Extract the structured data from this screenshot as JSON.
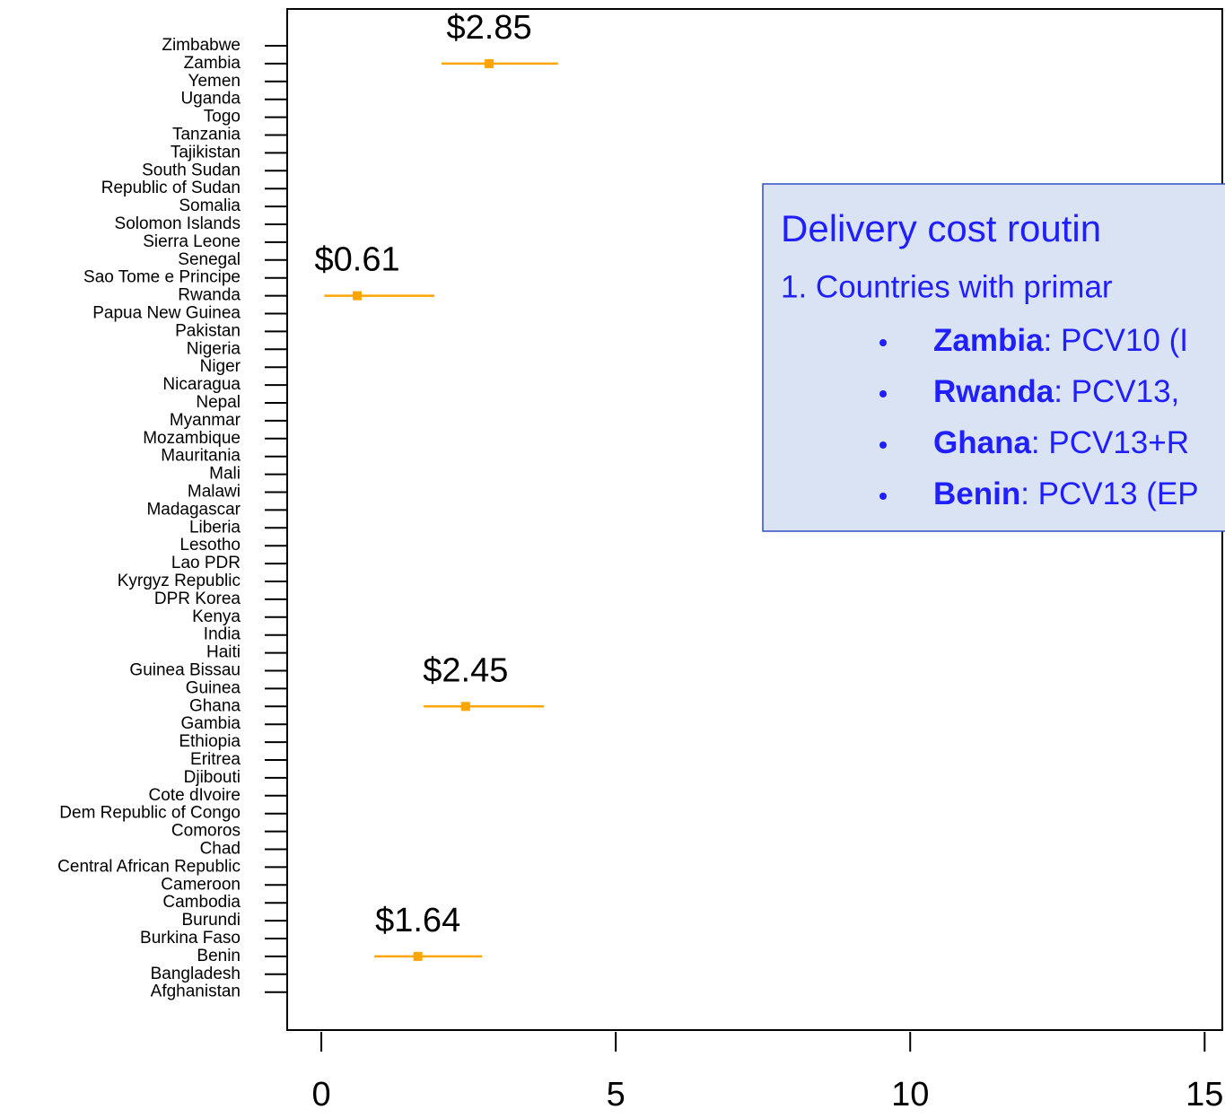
{
  "chart_data": {
    "type": "errorpoint",
    "categories": [
      "Zimbabwe",
      "Zambia",
      "Yemen",
      "Uganda",
      "Togo",
      "Tanzania",
      "Tajikistan",
      "South Sudan",
      "Republic of Sudan",
      "Somalia",
      "Solomon Islands",
      "Sierra Leone",
      "Senegal",
      "Sao Tome e Principe",
      "Rwanda",
      "Papua New Guinea",
      "Pakistan",
      "Nigeria",
      "Niger",
      "Nicaragua",
      "Nepal",
      "Myanmar",
      "Mozambique",
      "Mauritania",
      "Mali",
      "Malawi",
      "Madagascar",
      "Liberia",
      "Lesotho",
      "Lao PDR",
      "Kyrgyz Republic",
      "DPR Korea",
      "Kenya",
      "India",
      "Haiti",
      "Guinea Bissau",
      "Guinea",
      "Ghana",
      "Gambia",
      "Ethiopia",
      "Eritrea",
      "Djibouti",
      "Cote dIvoire",
      "Dem Republic of Congo",
      "Comoros",
      "Chad",
      "Central African Republic",
      "Cameroon",
      "Cambodia",
      "Burundi",
      "Burkina Faso",
      "Benin",
      "Bangladesh",
      "Afghanistan"
    ],
    "values": [
      null,
      2.85,
      null,
      null,
      null,
      null,
      null,
      null,
      null,
      null,
      null,
      null,
      null,
      null,
      0.61,
      null,
      null,
      null,
      null,
      null,
      null,
      null,
      null,
      null,
      null,
      null,
      null,
      null,
      null,
      null,
      null,
      null,
      null,
      null,
      null,
      null,
      null,
      2.45,
      null,
      null,
      null,
      null,
      null,
      null,
      null,
      null,
      null,
      null,
      null,
      null,
      null,
      1.64,
      null,
      null
    ],
    "low": [
      null,
      2.04,
      null,
      null,
      null,
      null,
      null,
      null,
      null,
      null,
      null,
      null,
      null,
      null,
      0.05,
      null,
      null,
      null,
      null,
      null,
      null,
      null,
      null,
      null,
      null,
      null,
      null,
      null,
      null,
      null,
      null,
      null,
      null,
      null,
      null,
      null,
      null,
      1.74,
      null,
      null,
      null,
      null,
      null,
      null,
      null,
      null,
      null,
      null,
      null,
      null,
      null,
      0.9,
      null,
      null
    ],
    "high": [
      null,
      4.02,
      null,
      null,
      null,
      null,
      null,
      null,
      null,
      null,
      null,
      null,
      null,
      null,
      1.92,
      null,
      null,
      null,
      null,
      null,
      null,
      null,
      null,
      null,
      null,
      null,
      null,
      null,
      null,
      null,
      null,
      null,
      null,
      null,
      null,
      null,
      null,
      3.78,
      null,
      null,
      null,
      null,
      null,
      null,
      null,
      null,
      null,
      null,
      null,
      null,
      null,
      2.73,
      null,
      null
    ],
    "value_labels": [
      null,
      "$2.85",
      null,
      null,
      null,
      null,
      null,
      null,
      null,
      null,
      null,
      null,
      null,
      null,
      "$0.61",
      null,
      null,
      null,
      null,
      null,
      null,
      null,
      null,
      null,
      null,
      null,
      null,
      null,
      null,
      null,
      null,
      null,
      null,
      null,
      null,
      null,
      null,
      "$2.45",
      null,
      null,
      null,
      null,
      null,
      null,
      null,
      null,
      null,
      null,
      null,
      null,
      null,
      "$1.64",
      null,
      null
    ],
    "color": "#ffa500",
    "xlim": [
      -0.58,
      15.3
    ],
    "xticks": [
      0,
      5,
      10,
      15
    ],
    "annotation": {
      "title": "Delivery cost routin",
      "item": "1.   Countries with primar",
      "bullets": [
        {
          "bold": "Zambia",
          "text": ": PCV10 (I"
        },
        {
          "bold": "Rwanda",
          "text": ": PCV13,"
        },
        {
          "bold": "Ghana",
          "text": ": PCV13+R"
        },
        {
          "bold": "Benin",
          "text": ": PCV13 (EP"
        }
      ]
    }
  }
}
